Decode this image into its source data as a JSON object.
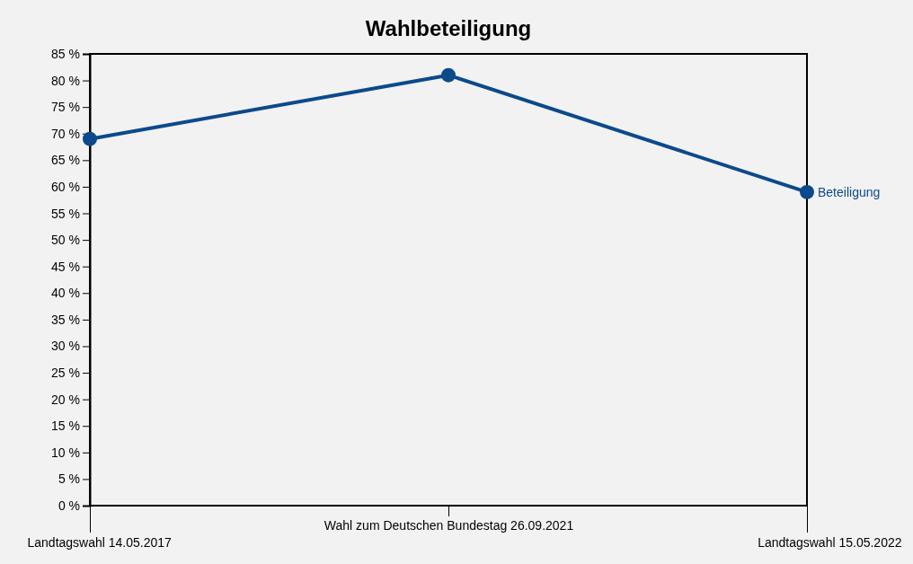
{
  "chart_data": {
    "type": "line",
    "title": "Wahlbeteiligung",
    "categories": [
      "Landtagswahl 14.05.2017",
      "Wahl zum Deutschen Bundestag 26.09.2021",
      "Landtagswahl 15.05.2022"
    ],
    "series": [
      {
        "name": "Beteiligung",
        "color": "#0b4a8b",
        "values": [
          69,
          81,
          59
        ]
      }
    ],
    "ylim": [
      0,
      85
    ],
    "yticks": [
      {
        "value": 0,
        "label": "0 %"
      },
      {
        "value": 5,
        "label": "5 %"
      },
      {
        "value": 10,
        "label": "10 %"
      },
      {
        "value": 15,
        "label": "15 %"
      },
      {
        "value": 20,
        "label": "20 %"
      },
      {
        "value": 25,
        "label": "25 %"
      },
      {
        "value": 30,
        "label": "30 %"
      },
      {
        "value": 35,
        "label": "35 %"
      },
      {
        "value": 40,
        "label": "40 %"
      },
      {
        "value": 45,
        "label": "45 %"
      },
      {
        "value": 50,
        "label": "50 %"
      },
      {
        "value": 55,
        "label": "55 %"
      },
      {
        "value": 60,
        "label": "60 %"
      },
      {
        "value": 65,
        "label": "65 %"
      },
      {
        "value": 70,
        "label": "70 %"
      },
      {
        "value": 75,
        "label": "75 %"
      },
      {
        "value": 80,
        "label": "80 %"
      },
      {
        "value": 85,
        "label": "85 %"
      }
    ],
    "marker": "circle",
    "line_style": "solid",
    "legend": false,
    "grid": false
  }
}
